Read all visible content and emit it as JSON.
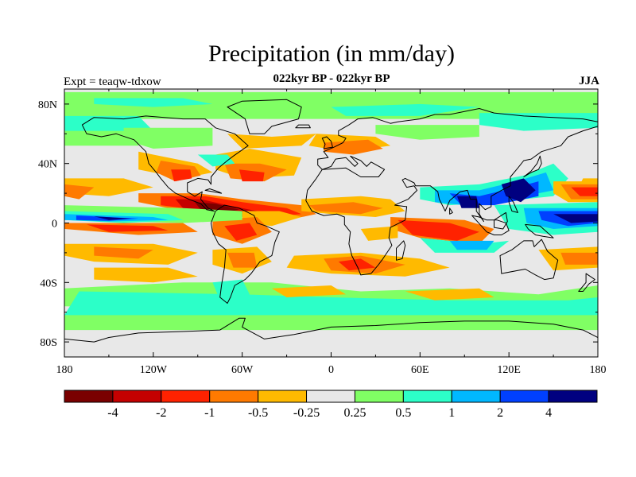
{
  "chart_data": {
    "type": "heatmap",
    "title": "Precipitation (in mm/day)",
    "subtitle": "022kyr BP - 022kyr BP",
    "left_string": "Expt = teaqw-tdxow",
    "right_string": "JJA",
    "x_ticks": [
      "180",
      "120W",
      "60W",
      "0",
      "60E",
      "120E",
      "180"
    ],
    "y_ticks": [
      "80N",
      "40N",
      "0",
      "40S",
      "80S"
    ],
    "colorbar": {
      "colors": [
        "#7a0000",
        "#c40000",
        "#ff2200",
        "#ff7a00",
        "#ffba00",
        "#e8e8e8",
        "#80ff64",
        "#2cffc8",
        "#00b8ff",
        "#0040ff",
        "#000080"
      ],
      "labels": [
        "-4",
        "-2",
        "-1",
        "-0.5",
        "-0.25",
        "0.25",
        "0.5",
        "1",
        "2",
        "4"
      ]
    }
  }
}
